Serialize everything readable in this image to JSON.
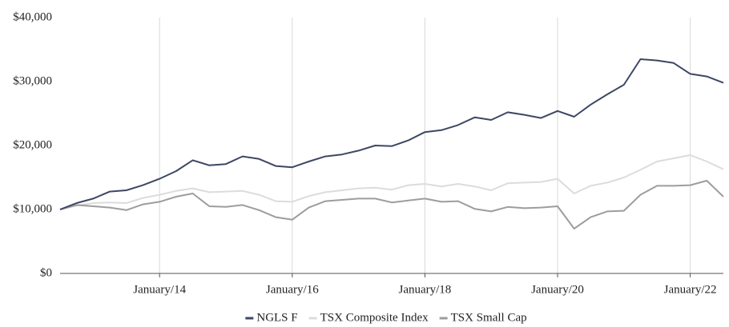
{
  "chart_data": {
    "type": "line",
    "categories": [
      null,
      null,
      null,
      null,
      null,
      null,
      "January/14",
      null,
      null,
      null,
      null,
      null,
      null,
      null,
      "January/16",
      null,
      null,
      null,
      null,
      null,
      null,
      null,
      "January/18",
      null,
      null,
      null,
      null,
      null,
      null,
      null,
      "January/20",
      null,
      null,
      null,
      null,
      null,
      null,
      null,
      "January/22",
      null,
      null
    ],
    "series": [
      {
        "name": "NGLS F",
        "color": "#3d4763",
        "values": [
          10000,
          11000,
          11700,
          12800,
          13000,
          13800,
          14800,
          16000,
          17700,
          16900,
          17100,
          18300,
          17900,
          16800,
          16600,
          17500,
          18300,
          18600,
          19200,
          20000,
          19900,
          20800,
          22100,
          22400,
          23200,
          24400,
          24000,
          25200,
          24800,
          24300,
          25400,
          24500,
          26400,
          28000,
          29500,
          33500,
          33300,
          32900,
          31200,
          30800,
          29800
        ]
      },
      {
        "name": "TSX Composite Index",
        "color": "#dcdcdc",
        "values": [
          10000,
          10600,
          11000,
          11100,
          11000,
          11800,
          12300,
          12900,
          13300,
          12700,
          12800,
          12900,
          12300,
          11300,
          11200,
          12100,
          12700,
          13000,
          13300,
          13400,
          13100,
          13800,
          14000,
          13600,
          14000,
          13600,
          13000,
          14100,
          14200,
          14300,
          14800,
          12500,
          13700,
          14200,
          15000,
          16200,
          17500,
          18000,
          18500,
          17500,
          16300
        ]
      },
      {
        "name": "TSX Small Cap",
        "color": "#9d9d9d",
        "values": [
          10000,
          10700,
          10500,
          10300,
          9900,
          10800,
          11200,
          12000,
          12500,
          10500,
          10400,
          10700,
          9900,
          8800,
          8400,
          10300,
          11300,
          11500,
          11700,
          11700,
          11100,
          11400,
          11700,
          11200,
          11300,
          10100,
          9700,
          10400,
          10200,
          10300,
          10500,
          7000,
          8800,
          9700,
          9800,
          12300,
          13700,
          13700,
          13800,
          14500,
          12000
        ]
      }
    ],
    "ylim": [
      0,
      40000
    ],
    "yticks": [
      {
        "value": 0,
        "label": "$0"
      },
      {
        "value": 10000,
        "label": "$10,000"
      },
      {
        "value": 20000,
        "label": "$20,000"
      },
      {
        "value": 30000,
        "label": "$30,000"
      },
      {
        "value": 40000,
        "label": "$40,000"
      }
    ],
    "grid": "x",
    "legend": "bottom"
  }
}
